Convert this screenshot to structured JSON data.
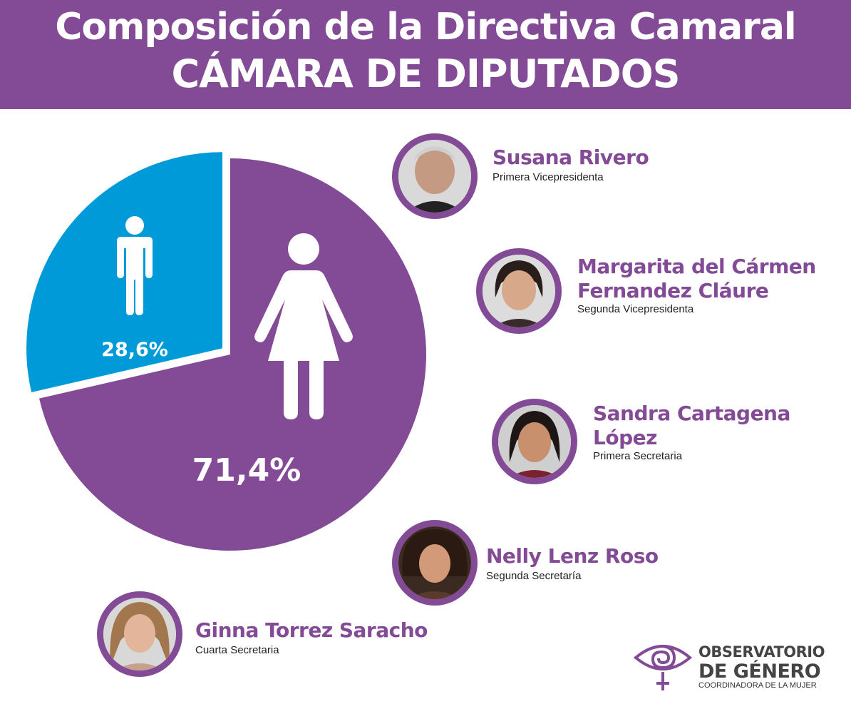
{
  "header": {
    "title_line1": "Composición de la Directiva Camaral",
    "title_line2": "CÁMARA DE DIPUTADOS"
  },
  "colors": {
    "women": "#834a96",
    "men": "#009ad9",
    "header_bg": "#834a96"
  },
  "chart_data": {
    "type": "pie",
    "slices": [
      {
        "label": "71,4%",
        "value": 71.4,
        "color": "#834a96",
        "icon": "woman-icon"
      },
      {
        "label": "28,6%",
        "value": 28.6,
        "color": "#009ad9",
        "icon": "man-icon"
      }
    ]
  },
  "members": [
    {
      "name": "Susana Rivero",
      "role": "Primera Vicepresidenta"
    },
    {
      "name_line1": "Margarita del Cármen",
      "name_line2": "Fernandez Cláure",
      "role": "Segunda Vicepresidenta"
    },
    {
      "name_line1": "Sandra Cartagena",
      "name_line2": "López",
      "role": "Primera Secretaria"
    },
    {
      "name": "Nelly Lenz Roso",
      "role": "Segunda Secretaría"
    },
    {
      "name": "Ginna Torrez Saracho",
      "role": "Cuarta Secretaria"
    }
  ],
  "logo": {
    "line1": "OBSERVATORIO",
    "line2": "DE GÉNERO",
    "line3": "COORDINADORA DE LA MUJER"
  }
}
